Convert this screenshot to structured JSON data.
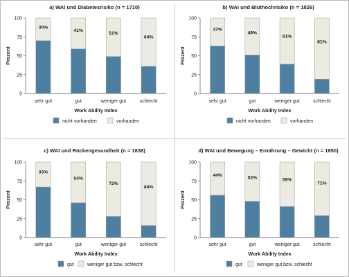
{
  "colors": {
    "series_primary": "#4f7fa0",
    "series_secondary": "#ecebe3",
    "bar_stroke": "#9a9a92",
    "axis": "#7a7a7a",
    "grid": "#d8d8d8",
    "frame": "#b9b9b9"
  },
  "chart_data": [
    {
      "type": "bar",
      "stacked": true,
      "title": "a) WAI und Diabetesrisiko (n = 1710)",
      "xlabel": "Work Ability Index",
      "ylabel": "Prozent",
      "ylim": [
        0,
        100
      ],
      "yticks": [
        0,
        25,
        50,
        75,
        100
      ],
      "grid": false,
      "legend_position": "bottom",
      "categories": [
        "sehr gut",
        "gut",
        "weniger gut",
        "schlecht"
      ],
      "series": [
        {
          "name": "nicht vorhanden",
          "values": [
            70,
            59,
            49,
            36
          ]
        },
        {
          "name": "vorhanden",
          "values": [
            30,
            41,
            51,
            64
          ]
        }
      ],
      "data_labels": [
        "30%",
        "41%",
        "51%",
        "64%"
      ]
    },
    {
      "type": "bar",
      "stacked": true,
      "title": "b) WAI und Bluthochrisiko (n = 1826)",
      "xlabel": "Work Ability Index",
      "ylabel": "Prozent",
      "ylim": [
        0,
        100
      ],
      "yticks": [
        0,
        25,
        50,
        75,
        100
      ],
      "grid": false,
      "legend_position": "bottom",
      "categories": [
        "sehr gut",
        "gut",
        "weniger gut",
        "schlecht"
      ],
      "series": [
        {
          "name": "nicht vorhanden",
          "values": [
            63,
            51,
            39,
            19
          ]
        },
        {
          "name": "vorhanden",
          "values": [
            37,
            49,
            61,
            81
          ]
        }
      ],
      "data_labels": [
        "37%",
        "49%",
        "61%",
        "81%"
      ]
    },
    {
      "type": "bar",
      "stacked": true,
      "title": "c) WAI und Rückengesundheit (n = 1838)",
      "xlabel": "Work Ability Index",
      "ylabel": "Prozent",
      "ylim": [
        0,
        100
      ],
      "yticks": [
        0,
        25,
        50,
        75,
        100
      ],
      "grid": false,
      "legend_position": "bottom",
      "categories": [
        "sehr gut",
        "gut",
        "weniger gut",
        "schlecht"
      ],
      "series": [
        {
          "name": "gut",
          "values": [
            67,
            46,
            28,
            16
          ]
        },
        {
          "name": "weniger gut bzw. schlecht",
          "values": [
            33,
            54,
            72,
            84
          ]
        }
      ],
      "data_labels": [
        "33%",
        "54%",
        "72%",
        "84%"
      ]
    },
    {
      "type": "bar",
      "stacked": true,
      "title": "d) WAI und Bewegung – Ernährung – Gewicht (n = 1850)",
      "xlabel": "Work Ability Index",
      "ylabel": "Prozent",
      "ylim": [
        0,
        100
      ],
      "yticks": [
        0,
        25,
        50,
        75,
        100
      ],
      "grid": false,
      "legend_position": "bottom",
      "categories": [
        "sehr gut",
        "gut",
        "weniger gut",
        "schlecht"
      ],
      "series": [
        {
          "name": "gut",
          "values": [
            56,
            48,
            41,
            29
          ]
        },
        {
          "name": "weniger gut bzw. schlecht",
          "values": [
            44,
            52,
            59,
            71
          ]
        }
      ],
      "data_labels": [
        "44%",
        "52%",
        "59%",
        "71%"
      ]
    }
  ]
}
